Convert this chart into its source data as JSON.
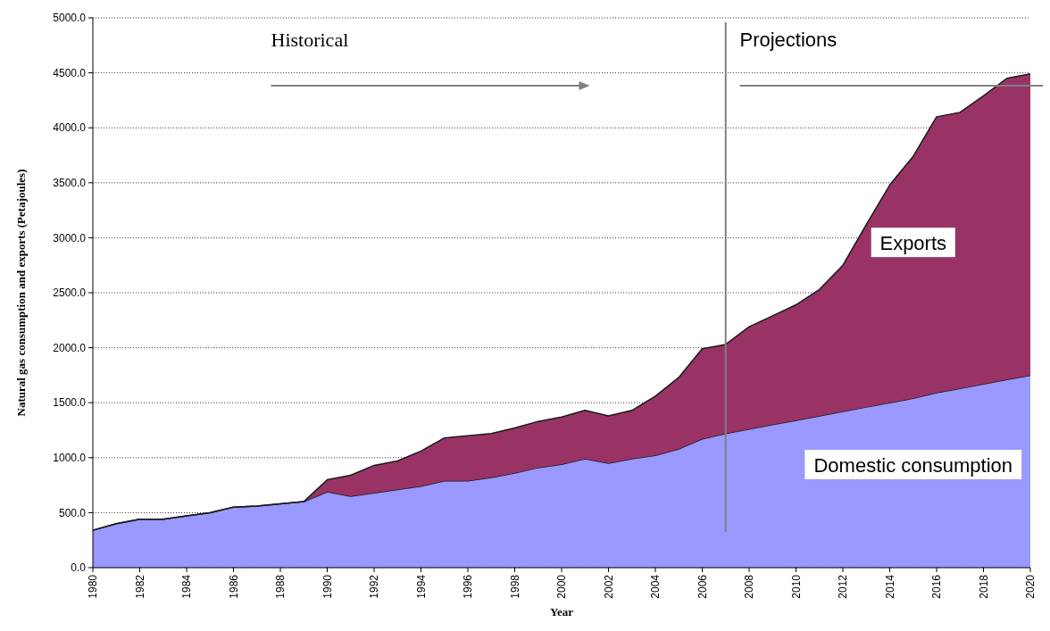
{
  "chart_data": {
    "type": "area",
    "stacked": true,
    "xlabel": "Year",
    "ylabel": "Natural gas consumption and exports (Petajoules)",
    "x": [
      1980,
      1981,
      1982,
      1983,
      1984,
      1985,
      1986,
      1987,
      1988,
      1989,
      1990,
      1991,
      1992,
      1993,
      1994,
      1995,
      1996,
      1997,
      1998,
      1999,
      2000,
      2001,
      2002,
      2003,
      2004,
      2005,
      2006,
      2007,
      2008,
      2009,
      2010,
      2011,
      2012,
      2013,
      2014,
      2015,
      2016,
      2017,
      2018,
      2019,
      2020
    ],
    "series": [
      {
        "name": "Domestic consumption",
        "color": "#9999ff",
        "values": [
          340,
          400,
          440,
          440,
          470,
          500,
          550,
          560,
          580,
          600,
          690,
          650,
          680,
          710,
          740,
          790,
          790,
          820,
          860,
          910,
          940,
          990,
          950,
          990,
          1020,
          1080,
          1170,
          1220,
          1260,
          1300,
          1340,
          1380,
          1420,
          1460,
          1500,
          1540,
          1590,
          1630,
          1670,
          1710,
          1750
        ]
      },
      {
        "name": "Exports",
        "color": "#993366",
        "values": [
          0,
          0,
          0,
          0,
          0,
          0,
          0,
          0,
          0,
          0,
          110,
          190,
          250,
          260,
          320,
          390,
          410,
          400,
          410,
          420,
          430,
          440,
          430,
          440,
          540,
          650,
          820,
          810,
          930,
          990,
          1050,
          1150,
          1330,
          1660,
          1980,
          2200,
          2510,
          2510,
          2620,
          2740,
          2740
        ]
      }
    ],
    "xlim": [
      1980,
      2020
    ],
    "xticks": [
      1980,
      1982,
      1984,
      1986,
      1988,
      1990,
      1992,
      1994,
      1996,
      1998,
      2000,
      2002,
      2004,
      2006,
      2008,
      2010,
      2012,
      2014,
      2016,
      2018,
      2020
    ],
    "ylim": [
      0,
      5000
    ],
    "yticks": [
      {
        "value": 0,
        "label": "0.0"
      },
      {
        "value": 500,
        "label": "500.0"
      },
      {
        "value": 1000,
        "label": "1000.0"
      },
      {
        "value": 1500,
        "label": "1500.0"
      },
      {
        "value": 2000,
        "label": "2000.0"
      },
      {
        "value": 2500,
        "label": "2500.0"
      },
      {
        "value": 3000,
        "label": "3000.0"
      },
      {
        "value": 3500,
        "label": "3500.0"
      },
      {
        "value": 4000,
        "label": "4000.0"
      },
      {
        "value": 4500,
        "label": "4500.0"
      },
      {
        "value": 5000,
        "label": "5000.0"
      }
    ],
    "grid": "y",
    "ref_lines": [
      {
        "axis": "x",
        "value": 2007,
        "color": "#808080"
      }
    ],
    "annotations": [
      "Historical",
      "Projections"
    ]
  }
}
